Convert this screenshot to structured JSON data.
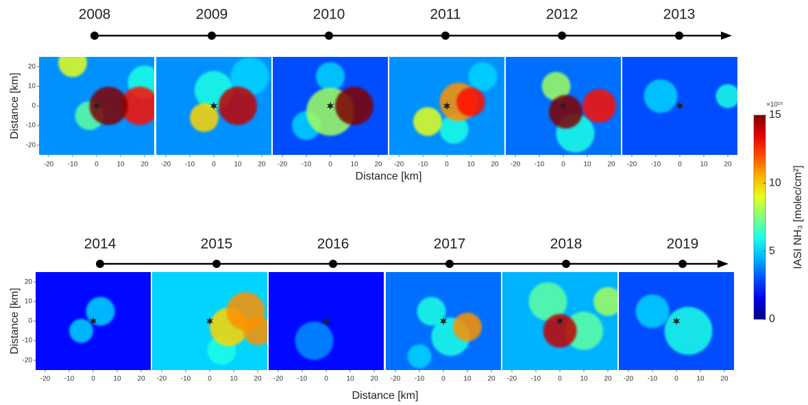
{
  "xlabel": "Distance [km]",
  "ylabel": "Distance [km]",
  "axes": {
    "type": "heatmap",
    "xlim": [
      -24,
      24
    ],
    "ylim": [
      -25,
      25
    ],
    "xticks": [
      -20,
      -10,
      0,
      10,
      20
    ],
    "yticks": [
      -20,
      -10,
      0,
      10,
      20
    ],
    "source": [
      0,
      0
    ]
  },
  "colorbar": {
    "label": "IASI NH₃ [molec/cm²]",
    "exponent_label": "×10¹⁵",
    "lim": [
      0,
      15
    ],
    "ticks": [
      0,
      5,
      10,
      15
    ]
  },
  "rows": [
    {
      "panels": [
        {
          "year": "2008",
          "base": 4,
          "spots": [
            {
              "x": -10,
              "y": 22,
              "v": 9,
              "r": 6
            },
            {
              "x": 20,
              "y": 12,
              "v": 6,
              "r": 7
            },
            {
              "x": -3,
              "y": -5,
              "v": 7,
              "r": 6
            },
            {
              "x": 18,
              "y": 0,
              "v": 13,
              "r": 8
            },
            {
              "x": 5,
              "y": 0,
              "v": 15,
              "r": 8
            }
          ]
        },
        {
          "year": "2009",
          "base": 4,
          "spots": [
            {
              "x": 15,
              "y": 15,
              "v": 5,
              "r": 8
            },
            {
              "x": 0,
              "y": 8,
              "v": 6,
              "r": 8
            },
            {
              "x": -4,
              "y": -6,
              "v": 10,
              "r": 6
            },
            {
              "x": 10,
              "y": 0,
              "v": 14,
              "r": 8
            }
          ]
        },
        {
          "year": "2010",
          "base": 3,
          "spots": [
            {
              "x": 0,
              "y": 15,
              "v": 5,
              "r": 6
            },
            {
              "x": -10,
              "y": -10,
              "v": 5,
              "r": 6
            },
            {
              "x": 0,
              "y": -3,
              "v": 8,
              "r": 10
            },
            {
              "x": 10,
              "y": 0,
              "v": 15,
              "r": 8
            }
          ]
        },
        {
          "year": "2011",
          "base": 4,
          "spots": [
            {
              "x": 15,
              "y": 15,
              "v": 5,
              "r": 6
            },
            {
              "x": 3,
              "y": -12,
              "v": 6,
              "r": 6
            },
            {
              "x": -8,
              "y": -8,
              "v": 9,
              "r": 6
            },
            {
              "x": 5,
              "y": 2,
              "v": 11,
              "r": 8
            },
            {
              "x": 10,
              "y": 2,
              "v": 13,
              "r": 6
            }
          ]
        },
        {
          "year": "2012",
          "base": 3.5,
          "spots": [
            {
              "x": -3,
              "y": 10,
              "v": 8,
              "r": 6
            },
            {
              "x": 5,
              "y": -14,
              "v": 6,
              "r": 8
            },
            {
              "x": 15,
              "y": 0,
              "v": 13,
              "r": 7
            },
            {
              "x": 1,
              "y": -3,
              "v": 15,
              "r": 7
            }
          ]
        },
        {
          "year": "2013",
          "base": 3,
          "spots": [
            {
              "x": -8,
              "y": 5,
              "v": 5,
              "r": 7
            },
            {
              "x": 20,
              "y": 5,
              "v": 6,
              "r": 5
            }
          ]
        }
      ]
    },
    {
      "panels": [
        {
          "year": "2014",
          "base": 2,
          "spots": [
            {
              "x": 3,
              "y": 5,
              "v": 5,
              "r": 6
            },
            {
              "x": -5,
              "y": -5,
              "v": 5,
              "r": 5
            }
          ]
        },
        {
          "year": "2015",
          "base": 5,
          "spots": [
            {
              "x": -10,
              "y": 10,
              "v": 5,
              "r": 8
            },
            {
              "x": 5,
              "y": -15,
              "v": 6,
              "r": 6
            },
            {
              "x": 8,
              "y": -3,
              "v": 10,
              "r": 8
            },
            {
              "x": 20,
              "y": -5,
              "v": 11,
              "r": 6
            },
            {
              "x": 15,
              "y": 5,
              "v": 11,
              "r": 8
            }
          ]
        },
        {
          "year": "2016",
          "base": 2,
          "spots": [
            {
              "x": -5,
              "y": -10,
              "v": 4,
              "r": 8
            }
          ]
        },
        {
          "year": "2017",
          "base": 3.5,
          "spots": [
            {
              "x": -10,
              "y": -18,
              "v": 5,
              "r": 5
            },
            {
              "x": -5,
              "y": 5,
              "v": 6,
              "r": 6
            },
            {
              "x": 3,
              "y": -8,
              "v": 6,
              "r": 8
            },
            {
              "x": 10,
              "y": -3,
              "v": 11,
              "r": 6
            }
          ]
        },
        {
          "year": "2018",
          "base": 4.5,
          "spots": [
            {
              "x": -5,
              "y": 10,
              "v": 7,
              "r": 8
            },
            {
              "x": 20,
              "y": 10,
              "v": 8,
              "r": 6
            },
            {
              "x": 10,
              "y": -5,
              "v": 7,
              "r": 8
            },
            {
              "x": 0,
              "y": -5,
              "v": 14,
              "r": 7
            }
          ]
        },
        {
          "year": "2019",
          "base": 3,
          "spots": [
            {
              "x": 5,
              "y": -5,
              "v": 6,
              "r": 10
            },
            {
              "x": -10,
              "y": 5,
              "v": 5,
              "r": 7
            }
          ]
        }
      ]
    }
  ]
}
